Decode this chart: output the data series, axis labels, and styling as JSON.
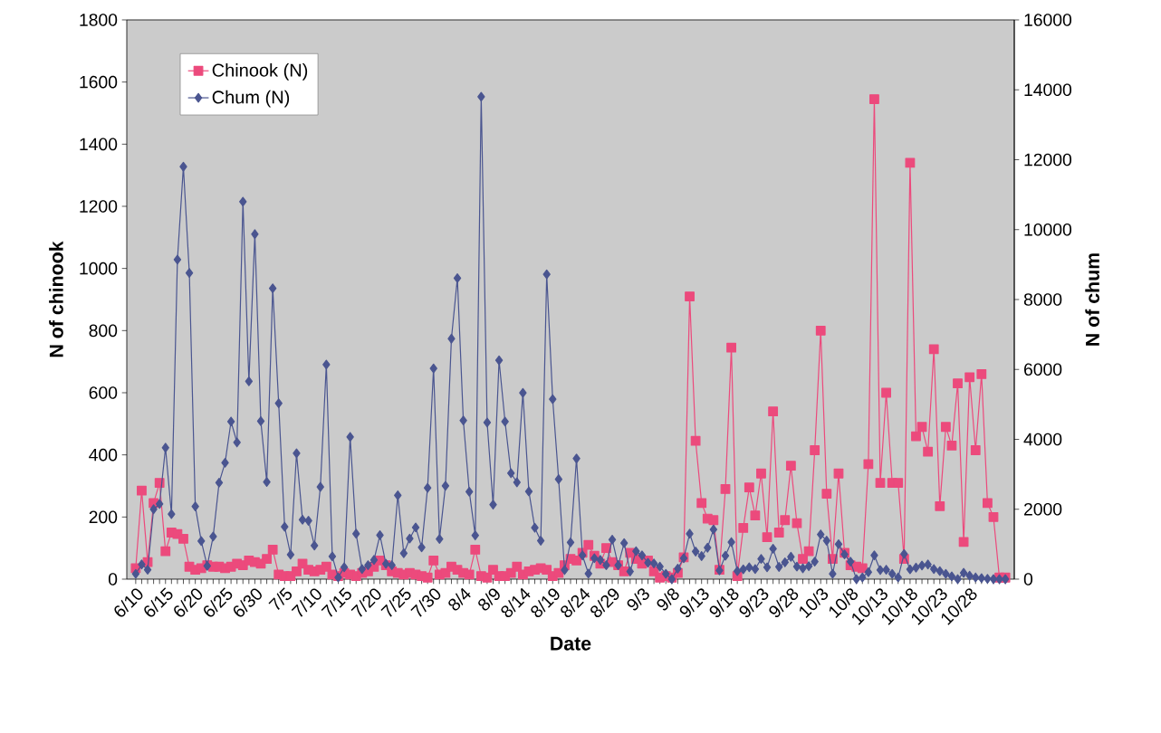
{
  "chart_data": {
    "type": "line",
    "xlabel": "Date",
    "ylabel": "N of chinook",
    "y2label": "N of chum",
    "categories": [
      "6/10",
      null,
      null,
      null,
      null,
      "6/15",
      null,
      null,
      null,
      null,
      "6/20",
      null,
      null,
      null,
      null,
      "6/25",
      null,
      null,
      null,
      null,
      "6/30",
      null,
      null,
      null,
      null,
      "7/5",
      null,
      null,
      null,
      null,
      "7/10",
      null,
      null,
      null,
      null,
      "7/15",
      null,
      null,
      null,
      null,
      "7/20",
      null,
      null,
      null,
      null,
      "7/25",
      null,
      null,
      null,
      null,
      "7/30",
      null,
      null,
      null,
      null,
      "8/4",
      null,
      null,
      null,
      null,
      "8/9",
      null,
      null,
      null,
      null,
      "8/14",
      null,
      null,
      null,
      null,
      "8/19",
      null,
      null,
      null,
      null,
      "8/24",
      null,
      null,
      null,
      null,
      "8/29",
      null,
      null,
      null,
      null,
      "9/3",
      null,
      null,
      null,
      null,
      "9/8",
      null,
      null,
      null,
      null,
      "9/13",
      null,
      null,
      null,
      null,
      "9/18",
      null,
      null,
      null,
      null,
      "9/23",
      null,
      null,
      null,
      null,
      "9/28",
      null,
      null,
      null,
      null,
      "10/3",
      null,
      null,
      null,
      null,
      "10/8",
      null,
      null,
      null,
      null,
      "10/13",
      null,
      null,
      null,
      null,
      "10/18",
      null,
      null,
      null,
      null,
      "10/23",
      null,
      null,
      null,
      null,
      "10/28",
      null,
      null,
      null,
      null,
      null,
      null
    ],
    "series": [
      {
        "name": "Chinook (N)",
        "color": "#ec4a7c",
        "marker": "square",
        "values": [
          35,
          285,
          55,
          245,
          310,
          90,
          150,
          145,
          130,
          40,
          30,
          35,
          45,
          40,
          40,
          35,
          40,
          50,
          45,
          60,
          55,
          50,
          65,
          95,
          15,
          10,
          10,
          25,
          50,
          30,
          25,
          30,
          40,
          15,
          10,
          20,
          15,
          10,
          20,
          25,
          40,
          60,
          45,
          25,
          20,
          15,
          20,
          15,
          10,
          5,
          60,
          15,
          20,
          40,
          30,
          20,
          15,
          95,
          10,
          5,
          30,
          10,
          10,
          20,
          40,
          15,
          25,
          30,
          35,
          30,
          10,
          20,
          45,
          65,
          60,
          85,
          110,
          75,
          50,
          100,
          55,
          45,
          25,
          85,
          65,
          50,
          60,
          25,
          5,
          10,
          5,
          20,
          70,
          910,
          445,
          245,
          195,
          190,
          30,
          290,
          745,
          10,
          165,
          295,
          205,
          340,
          135,
          540,
          150,
          190,
          365,
          180,
          65,
          90,
          415,
          800,
          275,
          65,
          340,
          85,
          45,
          40,
          35,
          370,
          1545,
          310,
          600,
          310,
          310,
          65,
          1340,
          460,
          490,
          410,
          740,
          235,
          490,
          430,
          630,
          120,
          650,
          415,
          660,
          245,
          200,
          5,
          5
        ]
      },
      {
        "name": "Chum (N)",
        "color": "#4a5590",
        "marker": "diamond",
        "axis": "y2",
        "values": [
          150,
          420,
          270,
          2000,
          2150,
          3760,
          1860,
          9140,
          11800,
          8760,
          2080,
          1090,
          380,
          1220,
          2760,
          3330,
          4510,
          3910,
          10800,
          5660,
          9870,
          4520,
          2780,
          8320,
          5030,
          1500,
          700,
          3600,
          1700,
          1670,
          960,
          2640,
          6140,
          650,
          50,
          340,
          4070,
          1300,
          290,
          400,
          550,
          1260,
          440,
          400,
          2400,
          740,
          1160,
          1480,
          910,
          2610,
          6030,
          1150,
          2670,
          6880,
          8610,
          4540,
          2500,
          1250,
          13800,
          4480,
          2130,
          6260,
          4510,
          3030,
          2770,
          5330,
          2510,
          1470,
          1100,
          8720,
          5150,
          2860,
          260,
          1050,
          3450,
          680,
          160,
          600,
          550,
          400,
          1130,
          400,
          1030,
          220,
          800,
          680,
          470,
          450,
          360,
          150,
          0,
          300,
          600,
          1300,
          790,
          660,
          900,
          1420,
          250,
          670,
          1060,
          230,
          280,
          340,
          290,
          580,
          340,
          870,
          350,
          480,
          640,
          360,
          310,
          370,
          500,
          1280,
          1100,
          150,
          1000,
          710,
          500,
          0,
          50,
          200,
          680,
          260,
          270,
          150,
          50,
          720,
          280,
          330,
          390,
          420,
          290,
          230,
          150,
          80,
          0,
          180,
          100,
          50,
          30,
          10,
          0,
          0,
          0
        ]
      }
    ],
    "ylim": [
      0,
      1800
    ],
    "yticks": [
      0,
      200,
      400,
      600,
      800,
      1000,
      1200,
      1400,
      1600,
      1800
    ],
    "y2lim": [
      0,
      16000
    ],
    "y2ticks": [
      0,
      2000,
      4000,
      6000,
      8000,
      10000,
      12000,
      14000,
      16000
    ],
    "legend": "top left",
    "line_style": "solid"
  }
}
